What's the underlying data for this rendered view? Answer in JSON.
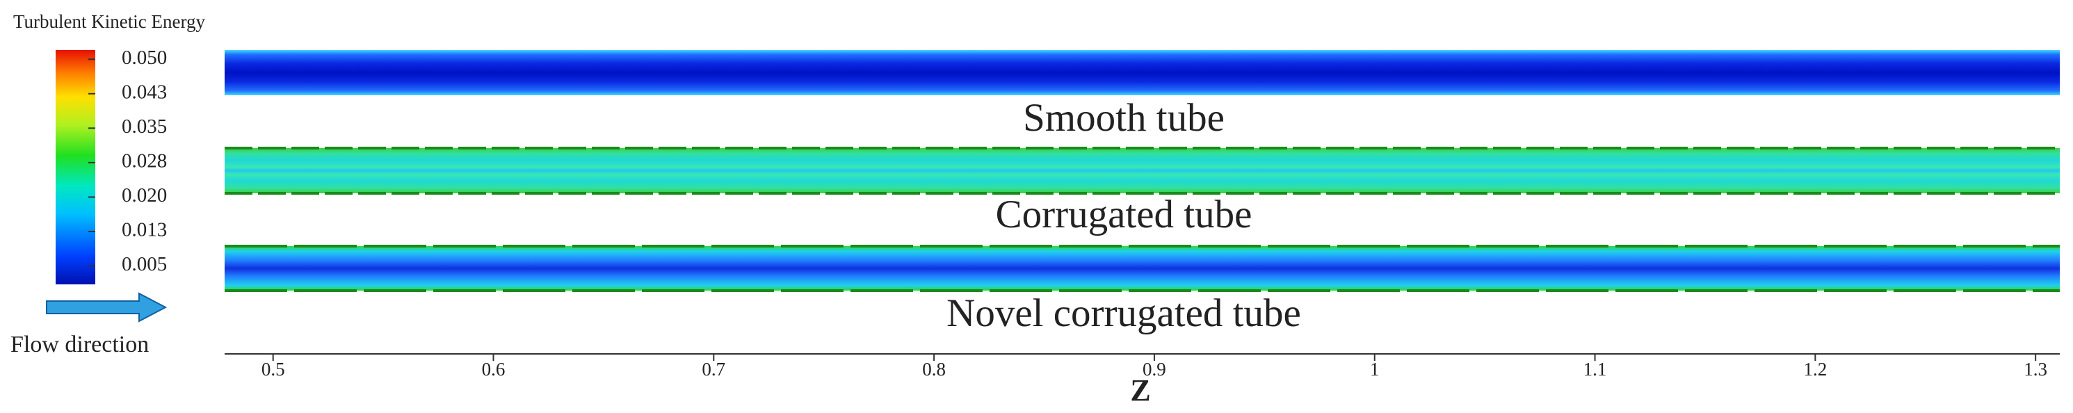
{
  "chart_data": {
    "type": "contour",
    "colorbar_title": "Turbulent Kinetic Energy",
    "clim": [
      0.001,
      0.052
    ],
    "cticks": [
      {
        "value": 0.05,
        "label": "0.050"
      },
      {
        "value": 0.0425,
        "label": "0.043"
      },
      {
        "value": 0.035,
        "label": "0.035"
      },
      {
        "value": 0.0275,
        "label": "0.028"
      },
      {
        "value": 0.02,
        "label": "0.020"
      },
      {
        "value": 0.0125,
        "label": "0.013"
      },
      0.005
    ],
    "annotations": [
      "Smooth tube",
      "Corrugated tube",
      "Novel corrugated tube"
    ],
    "flow_label": "Flow direction",
    "x_label": "Z",
    "xlim": [
      0.478,
      1.311
    ],
    "xticks": [
      0.5,
      0.6,
      0.7,
      0.8,
      0.9,
      1,
      1.1,
      1.2,
      1.3
    ]
  }
}
